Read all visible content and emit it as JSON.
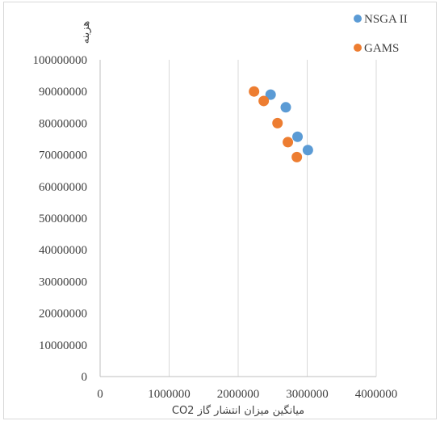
{
  "chart_data": {
    "type": "scatter",
    "title": "",
    "xlabel": "میانگین میزان انتشار گاز CO2",
    "ylabel": "هزینه",
    "xlim": [
      0,
      4000000
    ],
    "ylim": [
      0,
      100000000
    ],
    "x_ticks": [
      "0",
      "1000000",
      "2000000",
      "3000000",
      "4000000"
    ],
    "y_ticks": [
      "0",
      "10000000",
      "20000000",
      "30000000",
      "40000000",
      "50000000",
      "60000000",
      "70000000",
      "80000000",
      "90000000",
      "100000000"
    ],
    "grid": "vertical",
    "legend_position": "top-right",
    "series": [
      {
        "name": "NSGA II",
        "color": "#5b9bd5",
        "points": [
          [
            2470000,
            89000000
          ],
          [
            2690000,
            85000000
          ],
          [
            2860000,
            75700000
          ],
          [
            3010000,
            71500000
          ]
        ]
      },
      {
        "name": "GAMS",
        "color": "#ed7d31",
        "points": [
          [
            2230000,
            90000000
          ],
          [
            2370000,
            87000000
          ],
          [
            2570000,
            80000000
          ],
          [
            2720000,
            74000000
          ],
          [
            2850000,
            69300000
          ]
        ]
      }
    ]
  }
}
